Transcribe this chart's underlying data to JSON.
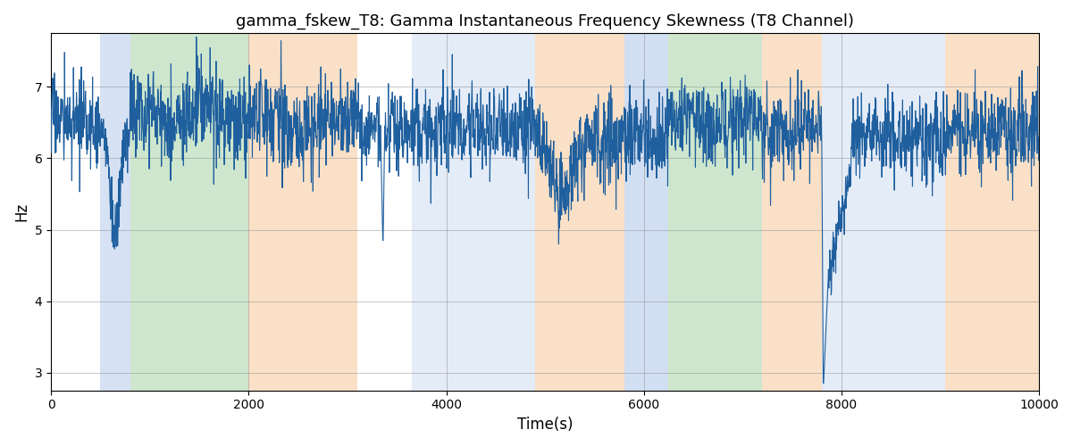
{
  "title": "gamma_fskew_T8: Gamma Instantaneous Frequency Skewness (T8 Channel)",
  "xlabel": "Time(s)",
  "ylabel": "Hz",
  "xlim": [
    0,
    10000
  ],
  "ylim": [
    2.75,
    7.75
  ],
  "yticks": [
    3,
    4,
    5,
    6,
    7
  ],
  "xticks": [
    0,
    2000,
    4000,
    6000,
    8000,
    10000
  ],
  "line_color": "#1f5f9e",
  "line_width": 0.8,
  "background_bands": [
    {
      "xmin": 500,
      "xmax": 800,
      "color": "#aec6e8",
      "alpha": 0.5
    },
    {
      "xmin": 800,
      "xmax": 2000,
      "color": "#90c990",
      "alpha": 0.45
    },
    {
      "xmin": 2000,
      "xmax": 3100,
      "color": "#f5c899",
      "alpha": 0.55
    },
    {
      "xmin": 3650,
      "xmax": 4900,
      "color": "#aec6e8",
      "alpha": 0.32
    },
    {
      "xmin": 4900,
      "xmax": 5800,
      "color": "#f5c899",
      "alpha": 0.55
    },
    {
      "xmin": 5800,
      "xmax": 6250,
      "color": "#aec6e8",
      "alpha": 0.55
    },
    {
      "xmin": 6250,
      "xmax": 7200,
      "color": "#90c990",
      "alpha": 0.45
    },
    {
      "xmin": 7200,
      "xmax": 7800,
      "color": "#f5c899",
      "alpha": 0.55
    },
    {
      "xmin": 7800,
      "xmax": 9050,
      "color": "#aec6e8",
      "alpha": 0.32
    },
    {
      "xmin": 9050,
      "xmax": 10100,
      "color": "#f5c899",
      "alpha": 0.55
    }
  ],
  "seed": 17,
  "n_points": 3000,
  "figsize": [
    12,
    5
  ],
  "dpi": 100
}
